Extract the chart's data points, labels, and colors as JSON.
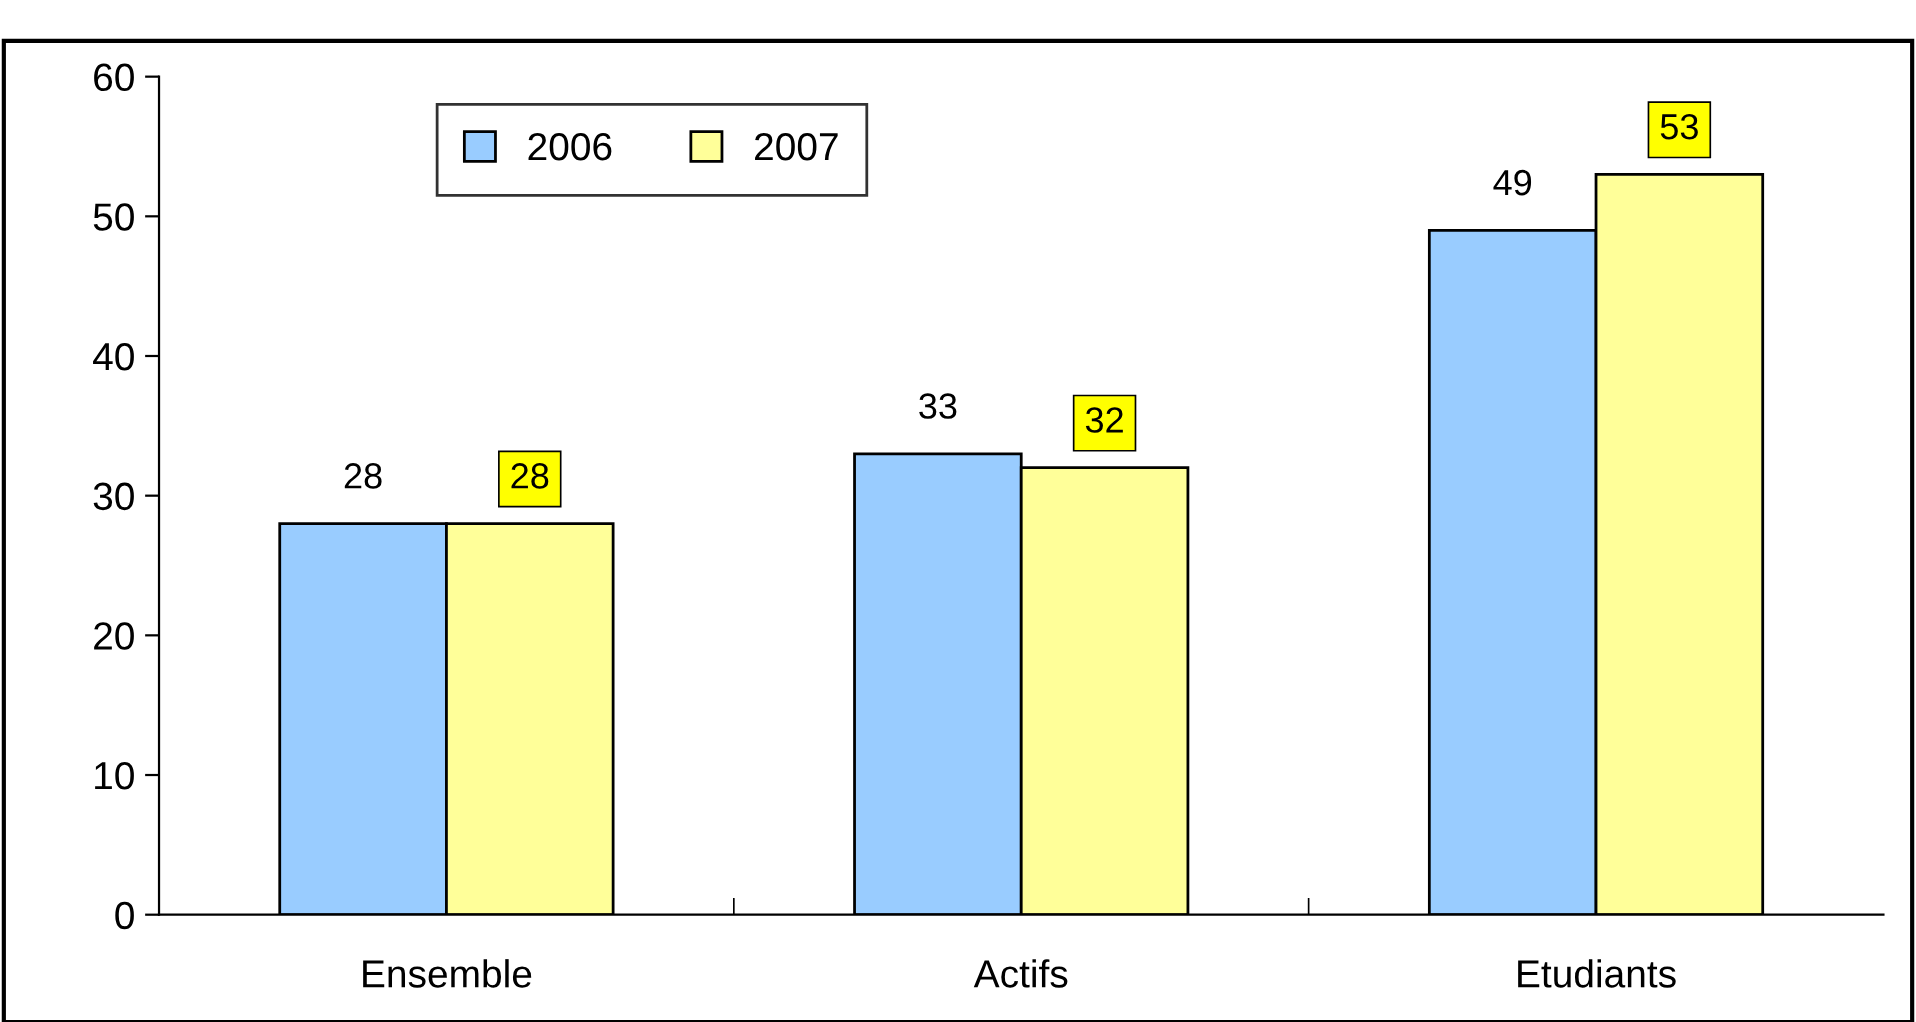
{
  "chart_data": {
    "type": "bar",
    "categories": [
      "Ensemble",
      "Actifs",
      "Etudiants"
    ],
    "series": [
      {
        "name": "2006",
        "color": "#99ccff",
        "values": [
          28,
          33,
          49
        ]
      },
      {
        "name": "2007",
        "color": "#ffff99",
        "values": [
          28,
          32,
          53
        ]
      }
    ],
    "ylim": [
      0,
      60
    ],
    "yticks": [
      0,
      10,
      20,
      30,
      40,
      50,
      60
    ],
    "data_labels": true,
    "legend": "top left",
    "grid": false
  }
}
